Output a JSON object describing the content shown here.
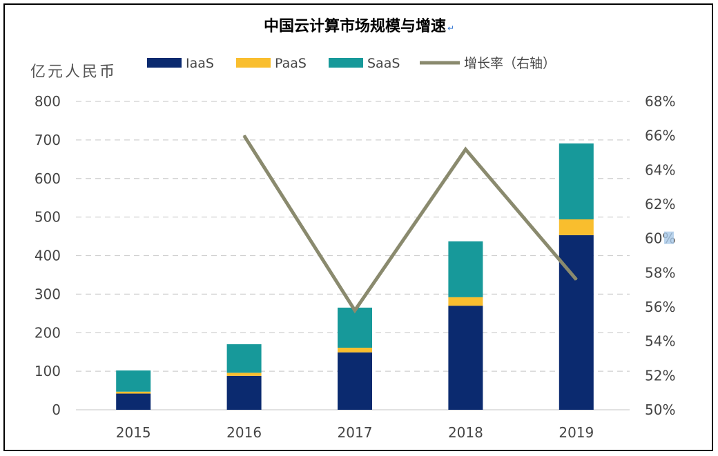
{
  "chart_data": {
    "type": "bar",
    "title": "中国云计算市场规模与增速",
    "title_mark": "↵",
    "y_unit_label": "亿元人民币",
    "categories": [
      "2015",
      "2016",
      "2017",
      "2018",
      "2019"
    ],
    "stacked": true,
    "series": [
      {
        "name": "IaaS",
        "kind": "bar",
        "axis": "left",
        "color": "#0b2a6f",
        "values": [
          42,
          88,
          149,
          270,
          453
        ]
      },
      {
        "name": "PaaS",
        "kind": "bar",
        "axis": "left",
        "color": "#f9be2e",
        "values": [
          5,
          8,
          12,
          22,
          41
        ]
      },
      {
        "name": "SaaS",
        "kind": "bar",
        "axis": "left",
        "color": "#17999a",
        "values": [
          55,
          74,
          104,
          145,
          197
        ]
      },
      {
        "name": "增长率（右轴）",
        "kind": "line",
        "axis": "right",
        "color": "#8a8a6e",
        "values": [
          null,
          66.0,
          55.8,
          65.2,
          57.6
        ]
      }
    ],
    "y_left": {
      "min": 0,
      "max": 800,
      "ticks": [
        "0",
        "100",
        "200",
        "300",
        "400",
        "500",
        "600",
        "700",
        "800"
      ]
    },
    "y_right": {
      "min": 50,
      "max": 68,
      "ticks": [
        "50%",
        "52%",
        "54%",
        "56%",
        "58%",
        "60%",
        "62%",
        "64%",
        "66%",
        "68%"
      ]
    },
    "grid": "horizontal dashed",
    "legend_position": "top"
  }
}
